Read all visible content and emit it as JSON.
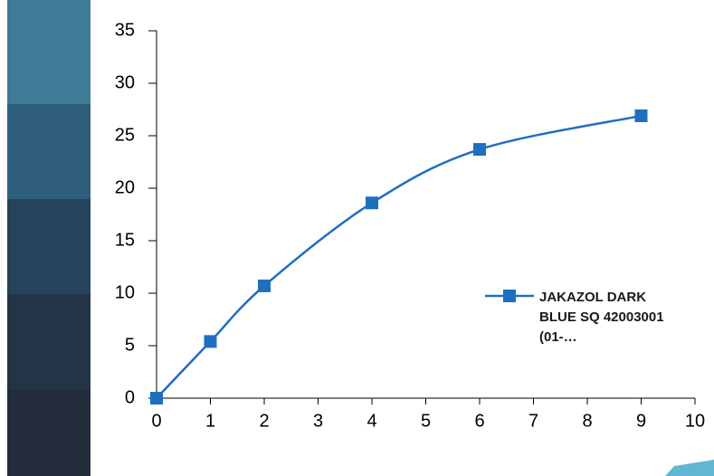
{
  "chart_data": {
    "type": "line",
    "x": [
      0,
      1,
      2,
      4,
      6,
      9
    ],
    "series": [
      {
        "name": "JAKAZOL DARK BLUE SQ 42003001 (01-…",
        "color": "#1f6fbf",
        "values": [
          0,
          5.4,
          10.7,
          18.6,
          23.7,
          26.9
        ]
      }
    ],
    "xlim": [
      0,
      10
    ],
    "xticks": [
      0,
      1,
      2,
      3,
      4,
      5,
      6,
      7,
      8,
      9,
      10
    ],
    "ylim": [
      0,
      35
    ],
    "yticks": [
      0,
      5,
      10,
      15,
      20,
      25,
      30,
      35
    ],
    "grid": false,
    "legend": "right"
  }
}
